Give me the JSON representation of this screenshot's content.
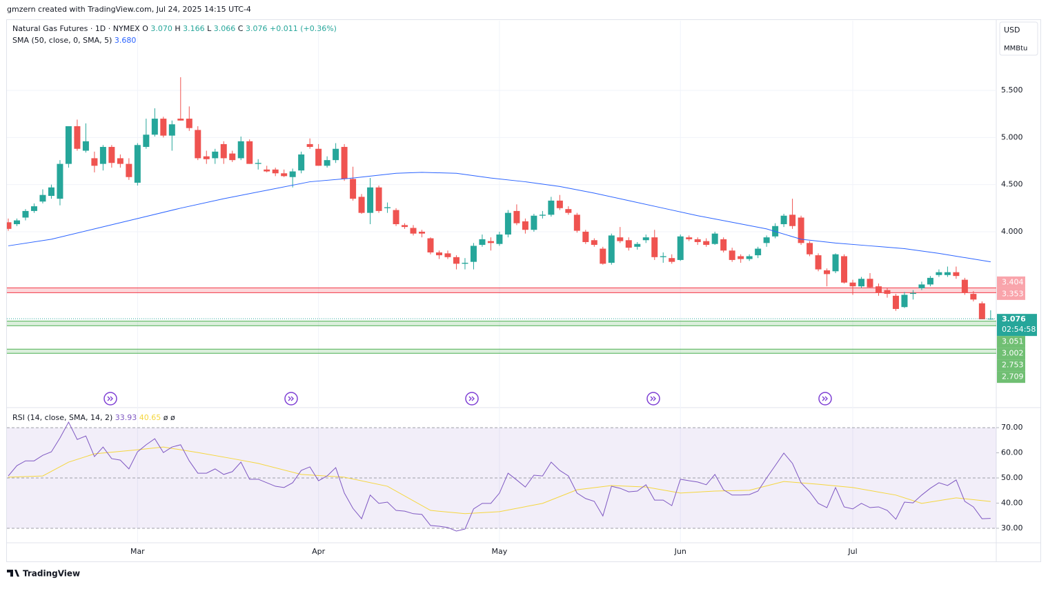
{
  "header": {
    "attribution": "gmzern created with TradingView.com, Jul 24, 2025 14:15 UTC-4",
    "footer": "TradingView"
  },
  "chart_data": {
    "type": "candlestick",
    "title": "Natural Gas Futures · 1D · NYMEX",
    "ohlc_legend": [
      {
        "label": "O",
        "value": "3.070"
      },
      {
        "label": "H",
        "value": "3.166"
      },
      {
        "label": "L",
        "value": "3.066"
      },
      {
        "label": "C",
        "value": "3.076"
      }
    ],
    "change": "+0.011 (+0.36%)",
    "currency": "USD",
    "unit": "MMBtu",
    "countdown": "02:54:58",
    "up_color": "#26a69a",
    "down_color": "#ef5350",
    "ylim": [
      2.14,
      6.24
    ],
    "yticks": [
      {
        "value": 4,
        "label": "4.000"
      },
      {
        "value": 4.5,
        "label": "4.500"
      },
      {
        "value": 5,
        "label": "5.000"
      },
      {
        "value": 5.5,
        "label": "5.500"
      }
    ],
    "xticks": [
      {
        "value": 15,
        "label": "Mar"
      },
      {
        "value": 36,
        "label": "Apr"
      },
      {
        "value": 57,
        "label": "May"
      },
      {
        "value": 78,
        "label": "Jun"
      },
      {
        "value": 98,
        "label": "Jul"
      }
    ],
    "grid": true,
    "candles": [
      [
        4.1,
        4.14,
        4.01,
        4.03
      ],
      [
        4.08,
        4.14,
        4.06,
        4.12
      ],
      [
        4.15,
        4.24,
        4.12,
        4.22
      ],
      [
        4.22,
        4.3,
        4.2,
        4.27
      ],
      [
        4.32,
        4.45,
        4.3,
        4.39
      ],
      [
        4.38,
        4.5,
        4.35,
        4.47
      ],
      [
        4.35,
        4.76,
        4.28,
        4.72
      ],
      [
        4.72,
        5.12,
        4.68,
        5.12
      ],
      [
        5.12,
        5.19,
        4.86,
        4.88
      ],
      [
        4.86,
        5.15,
        4.84,
        4.96
      ],
      [
        4.78,
        4.85,
        4.63,
        4.7
      ],
      [
        4.72,
        4.92,
        4.65,
        4.9
      ],
      [
        4.9,
        4.92,
        4.68,
        4.73
      ],
      [
        4.78,
        4.82,
        4.68,
        4.72
      ],
      [
        4.72,
        4.78,
        4.55,
        4.58
      ],
      [
        4.52,
        4.94,
        4.49,
        4.92
      ],
      [
        4.9,
        5.2,
        4.88,
        5.03
      ],
      [
        5.03,
        5.31,
        5.01,
        5.2
      ],
      [
        5.2,
        5.22,
        5.0,
        5.02
      ],
      [
        5.02,
        5.18,
        4.86,
        5.14
      ],
      [
        5.2,
        5.64,
        5.18,
        5.18
      ],
      [
        5.2,
        5.33,
        5.07,
        5.1
      ],
      [
        5.08,
        5.12,
        4.76,
        4.78
      ],
      [
        4.8,
        4.86,
        4.72,
        4.77
      ],
      [
        4.78,
        4.88,
        4.72,
        4.85
      ],
      [
        4.93,
        4.96,
        4.72,
        4.78
      ],
      [
        4.83,
        4.86,
        4.74,
        4.76
      ],
      [
        4.78,
        5.01,
        4.76,
        4.96
      ],
      [
        4.96,
        4.98,
        4.72,
        4.72
      ],
      [
        4.72,
        4.77,
        4.66,
        4.73
      ],
      [
        4.66,
        4.7,
        4.63,
        4.64
      ],
      [
        4.66,
        4.68,
        4.59,
        4.62
      ],
      [
        4.62,
        4.66,
        4.58,
        4.59
      ],
      [
        4.58,
        4.67,
        4.47,
        4.64
      ],
      [
        4.65,
        4.85,
        4.62,
        4.82
      ],
      [
        4.93,
        4.99,
        4.88,
        4.9
      ],
      [
        4.88,
        4.93,
        4.7,
        4.7
      ],
      [
        4.7,
        4.8,
        4.68,
        4.76
      ],
      [
        4.76,
        4.94,
        4.73,
        4.88
      ],
      [
        4.9,
        4.93,
        4.54,
        4.56
      ],
      [
        4.56,
        4.69,
        4.33,
        4.35
      ],
      [
        4.37,
        4.4,
        4.19,
        4.2
      ],
      [
        4.2,
        4.57,
        4.08,
        4.47
      ],
      [
        4.47,
        4.49,
        4.2,
        4.22
      ],
      [
        4.25,
        4.31,
        4.2,
        4.26
      ],
      [
        4.23,
        4.25,
        4.06,
        4.08
      ],
      [
        4.07,
        4.09,
        4.03,
        4.05
      ],
      [
        4.04,
        4.07,
        3.96,
        3.98
      ],
      [
        4.0,
        4.02,
        3.94,
        3.98
      ],
      [
        3.93,
        3.94,
        3.76,
        3.78
      ],
      [
        3.78,
        3.8,
        3.71,
        3.75
      ],
      [
        3.77,
        3.8,
        3.71,
        3.73
      ],
      [
        3.73,
        3.75,
        3.6,
        3.66
      ],
      [
        3.66,
        3.72,
        3.6,
        3.67
      ],
      [
        3.68,
        3.88,
        3.6,
        3.85
      ],
      [
        3.86,
        3.97,
        3.84,
        3.92
      ],
      [
        3.9,
        3.94,
        3.8,
        3.88
      ],
      [
        3.87,
        4.0,
        3.85,
        3.97
      ],
      [
        3.97,
        4.23,
        3.94,
        4.2
      ],
      [
        4.22,
        4.29,
        4.07,
        4.09
      ],
      [
        4.11,
        4.14,
        3.98,
        4.02
      ],
      [
        4.02,
        4.19,
        4.0,
        4.17
      ],
      [
        4.17,
        4.22,
        4.14,
        4.18
      ],
      [
        4.18,
        4.37,
        4.16,
        4.33
      ],
      [
        4.33,
        4.39,
        4.23,
        4.25
      ],
      [
        4.24,
        4.27,
        4.18,
        4.2
      ],
      [
        4.18,
        4.2,
        3.99,
        4.01
      ],
      [
        4.0,
        4.02,
        3.87,
        3.89
      ],
      [
        3.91,
        3.93,
        3.84,
        3.86
      ],
      [
        3.82,
        3.84,
        3.65,
        3.66
      ],
      [
        3.67,
        3.98,
        3.65,
        3.96
      ],
      [
        3.94,
        4.05,
        3.88,
        3.9
      ],
      [
        3.91,
        3.94,
        3.8,
        3.83
      ],
      [
        3.84,
        3.89,
        3.81,
        3.87
      ],
      [
        3.91,
        3.97,
        3.88,
        3.94
      ],
      [
        3.94,
        4.02,
        3.7,
        3.73
      ],
      [
        3.73,
        3.78,
        3.67,
        3.74
      ],
      [
        3.72,
        3.76,
        3.66,
        3.68
      ],
      [
        3.7,
        3.97,
        3.69,
        3.95
      ],
      [
        3.94,
        3.96,
        3.9,
        3.92
      ],
      [
        3.92,
        3.94,
        3.86,
        3.89
      ],
      [
        3.9,
        3.93,
        3.84,
        3.86
      ],
      [
        3.87,
        4.0,
        3.86,
        3.98
      ],
      [
        3.92,
        3.94,
        3.78,
        3.8
      ],
      [
        3.8,
        3.83,
        3.68,
        3.7
      ],
      [
        3.74,
        3.76,
        3.67,
        3.71
      ],
      [
        3.71,
        3.76,
        3.69,
        3.74
      ],
      [
        3.75,
        3.84,
        3.72,
        3.82
      ],
      [
        3.88,
        3.96,
        3.84,
        3.94
      ],
      [
        3.95,
        4.09,
        3.93,
        4.06
      ],
      [
        4.08,
        4.19,
        4.05,
        4.17
      ],
      [
        4.18,
        4.35,
        4.03,
        4.06
      ],
      [
        4.15,
        4.17,
        3.86,
        3.88
      ],
      [
        3.88,
        3.9,
        3.74,
        3.76
      ],
      [
        3.75,
        3.77,
        3.58,
        3.6
      ],
      [
        3.59,
        3.61,
        3.42,
        3.55
      ],
      [
        3.58,
        3.77,
        3.56,
        3.76
      ],
      [
        3.74,
        3.76,
        3.45,
        3.46
      ],
      [
        3.46,
        3.49,
        3.33,
        3.42
      ],
      [
        3.42,
        3.52,
        3.4,
        3.5
      ],
      [
        3.5,
        3.56,
        3.4,
        3.41
      ],
      [
        3.42,
        3.45,
        3.32,
        3.35
      ],
      [
        3.38,
        3.4,
        3.3,
        3.34
      ],
      [
        3.32,
        3.34,
        3.16,
        3.18
      ],
      [
        3.2,
        3.36,
        3.19,
        3.33
      ],
      [
        3.34,
        3.38,
        3.28,
        3.35
      ],
      [
        3.4,
        3.47,
        3.38,
        3.44
      ],
      [
        3.44,
        3.53,
        3.42,
        3.51
      ],
      [
        3.54,
        3.6,
        3.52,
        3.57
      ],
      [
        3.54,
        3.63,
        3.52,
        3.57
      ],
      [
        3.57,
        3.63,
        3.5,
        3.53
      ],
      [
        3.49,
        3.51,
        3.33,
        3.35
      ],
      [
        3.34,
        3.37,
        3.26,
        3.28
      ],
      [
        3.24,
        3.26,
        3.07,
        3.07
      ],
      [
        3.07,
        3.166,
        3.066,
        3.076
      ]
    ],
    "overlays": [
      {
        "name": "SMA (50, close, 0, SMA, 5)",
        "value_label": "3.680",
        "color": "#2962ff",
        "x": [
          0,
          5,
          10,
          15,
          20,
          25,
          30,
          35,
          40,
          45,
          48,
          52,
          56,
          60,
          64,
          68,
          72,
          76,
          80,
          84,
          88,
          92,
          96,
          100,
          104,
          108,
          114
        ],
        "values": [
          3.85,
          3.92,
          4.03,
          4.14,
          4.25,
          4.35,
          4.44,
          4.53,
          4.57,
          4.62,
          4.63,
          4.62,
          4.57,
          4.53,
          4.48,
          4.41,
          4.33,
          4.25,
          4.17,
          4.1,
          4.03,
          3.92,
          3.88,
          3.85,
          3.82,
          3.77,
          3.68
        ]
      }
    ],
    "zones": [
      {
        "top": 3.404,
        "bottom": 3.353,
        "color": "#f23645"
      },
      {
        "top": 3.051,
        "bottom": 3.002,
        "color": "#4caf50"
      },
      {
        "top": 2.753,
        "bottom": 2.709,
        "color": "#4caf50"
      }
    ],
    "rsi": {
      "name": "RSI (14, close, SMA, 14, 2)",
      "color": "#7e57c2",
      "extra": [
        "ø",
        "ø"
      ],
      "values": [
        50.8,
        54.9,
        56.8,
        56.8,
        59.0,
        60.4,
        65.9,
        72.2,
        65.3,
        66.7,
        58.5,
        62.3,
        57.7,
        57.1,
        53.6,
        60.4,
        63.2,
        65.6,
        60.1,
        62.3,
        63.2,
        56.8,
        51.9,
        51.9,
        53.6,
        51.4,
        52.5,
        56.3,
        49.5,
        49.5,
        48.1,
        46.7,
        46.2,
        48.1,
        53.0,
        54.4,
        48.9,
        50.8,
        54.1,
        44.0,
        37.9,
        33.8,
        43.2,
        39.9,
        40.4,
        37.1,
        36.8,
        35.8,
        35.5,
        31.1,
        30.8,
        30.3,
        28.9,
        29.7,
        37.7,
        39.9,
        39.9,
        44.0,
        51.9,
        49.2,
        46.4,
        51.1,
        50.8,
        56.3,
        53.0,
        50.8,
        44.0,
        41.8,
        40.7,
        34.9,
        46.7,
        45.9,
        44.5,
        44.8,
        47.3,
        41.2,
        41.2,
        39.0,
        49.5,
        48.9,
        48.4,
        47.3,
        51.4,
        45.3,
        43.2,
        43.2,
        43.4,
        44.8,
        50.0,
        54.9,
        59.9,
        55.8,
        48.1,
        44.5,
        39.9,
        38.2,
        46.2,
        38.5,
        37.7,
        39.9,
        38.2,
        38.5,
        37.1,
        33.6,
        40.4,
        40.1,
        43.2,
        45.9,
        48.1,
        47.0,
        49.2,
        40.7,
        38.5,
        33.8,
        33.93
      ],
      "sma": {
        "color": "#f5d63d",
        "x": [
          0,
          4,
          7,
          10,
          15,
          18,
          22,
          26,
          29,
          34,
          39,
          44,
          49,
          53,
          57,
          62,
          66,
          70,
          74,
          78,
          82,
          86,
          90,
          94,
          98,
          103,
          106,
          110,
          114
        ],
        "values": [
          50.3,
          50.8,
          56.3,
          59.6,
          61.2,
          62.3,
          60.1,
          57.7,
          55.8,
          51.4,
          50.3,
          46.7,
          37.1,
          35.8,
          36.6,
          39.9,
          45.3,
          47.0,
          46.4,
          44.0,
          44.8,
          45.1,
          48.6,
          47.5,
          46.2,
          43.2,
          39.9,
          42.1,
          40.65
        ]
      },
      "ylim": [
        24.5,
        77.7
      ],
      "yticks": [
        {
          "value": 30,
          "label": "30.00"
        },
        {
          "value": 40,
          "label": "40.00"
        },
        {
          "value": 50,
          "label": "50.00"
        },
        {
          "value": 60,
          "label": "60.00"
        },
        {
          "value": 70,
          "label": "70.00"
        }
      ],
      "band": [
        30,
        70
      ],
      "midline": 50
    }
  }
}
